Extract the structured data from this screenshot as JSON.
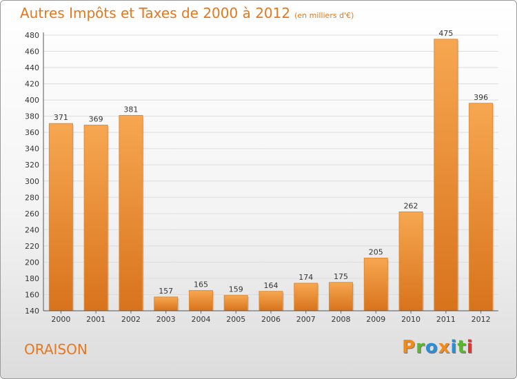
{
  "header": {
    "title": "Autres Impôts et Taxes de 2000 à 2012",
    "subtitle": "(en milliers d'€)"
  },
  "footer": {
    "commune": "ORAISON",
    "logo_text": "Proxiti",
    "logo_colors": [
      "#f28b1a",
      "#5bb531",
      "#2a8fd6",
      "#f28b1a",
      "#2a8fd6",
      "#5bb531",
      "#e5322d"
    ]
  },
  "chart_data": {
    "type": "bar",
    "categories": [
      "2000",
      "2001",
      "2002",
      "2003",
      "2004",
      "2005",
      "2006",
      "2007",
      "2008",
      "2009",
      "2010",
      "2011",
      "2012"
    ],
    "values": [
      371,
      369,
      381,
      157,
      165,
      159,
      164,
      174,
      175,
      205,
      262,
      475,
      396
    ],
    "ylim": [
      140,
      480
    ],
    "yticks": [
      140,
      160,
      180,
      200,
      220,
      240,
      260,
      280,
      300,
      320,
      340,
      360,
      380,
      400,
      420,
      440,
      460,
      480
    ],
    "grid": true,
    "bar_color_top": "#f7a751",
    "bar_color_bottom": "#d8731c"
  }
}
